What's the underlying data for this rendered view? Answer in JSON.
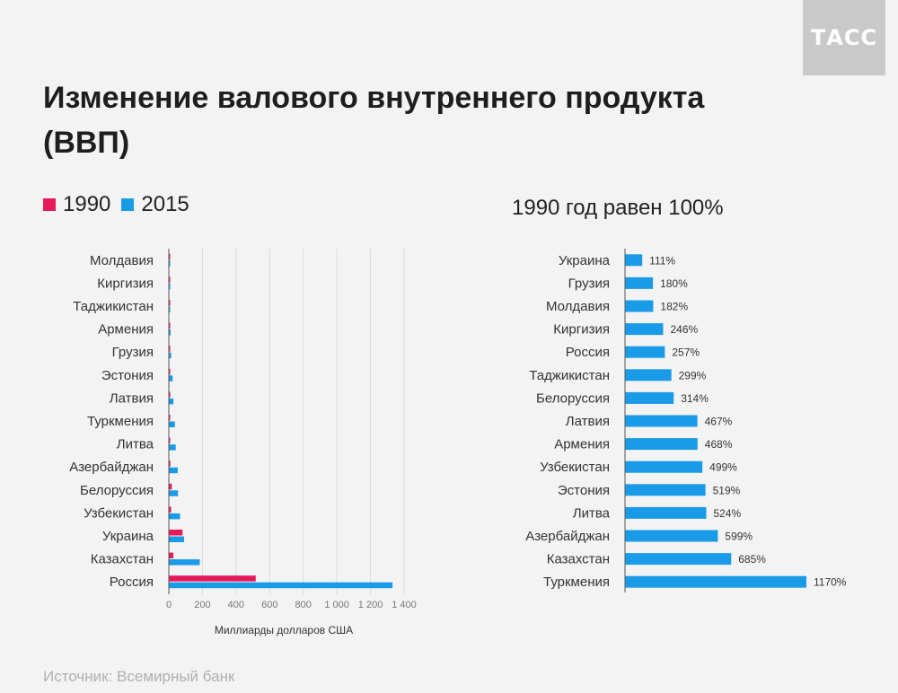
{
  "logo": "ТАСС",
  "title": "Изменение валового внутреннего продукта (ВВП)",
  "source": "Источник: Всемирный банк",
  "colors": {
    "y1990": "#e8195b",
    "y2015": "#1a9be8",
    "axis": "#555555",
    "grid": "#dcdcdc"
  },
  "chart_data": [
    {
      "type": "bar",
      "orientation": "horizontal",
      "legend": "top-left",
      "categories": [
        "Молдавия",
        "Киргизия",
        "Таджикистан",
        "Армения",
        "Грузия",
        "Эстония",
        "Латвия",
        "Туркмения",
        "Литва",
        "Азербайджан",
        "Белоруссия",
        "Узбекистан",
        "Украина",
        "Казахстан",
        "Россия"
      ],
      "series": [
        {
          "name": "1990",
          "values": [
            3.6,
            2.7,
            2.6,
            2.3,
            7.8,
            4.5,
            7.4,
            3.2,
            7.8,
            9.0,
            17.4,
            13.4,
            81.5,
            26.9,
            517
          ]
        },
        {
          "name": "2015",
          "values": [
            6.5,
            6.6,
            7.9,
            10.6,
            14.0,
            22.5,
            27.0,
            36.0,
            41.2,
            53.0,
            54.6,
            66.9,
            90.6,
            184.4,
            1331
          ]
        }
      ],
      "xlabel": "Миллиарды долларов США",
      "xlim": [
        0,
        1400
      ],
      "xticks": [
        0,
        200,
        400,
        600,
        800,
        1000,
        1200,
        1400
      ],
      "xtick_labels": [
        "0",
        "200",
        "400",
        "600",
        "800",
        "1 000",
        "1 200",
        "1 400"
      ],
      "grid": true
    },
    {
      "type": "bar",
      "orientation": "horizontal",
      "title": "1990 год равен 100%",
      "categories": [
        "Украина",
        "Грузия",
        "Молдавия",
        "Киргизия",
        "Россия",
        "Таджикистан",
        "Белоруссия",
        "Латвия",
        "Армения",
        "Узбекистан",
        "Эстония",
        "Литва",
        "Азербайджан",
        "Казахстан",
        "Туркмения"
      ],
      "values": [
        111,
        180,
        182,
        246,
        257,
        299,
        314,
        467,
        468,
        499,
        519,
        524,
        599,
        685,
        1170
      ],
      "value_labels": [
        "111%",
        "180%",
        "182%",
        "246%",
        "257%",
        "299%",
        "314%",
        "467%",
        "468%",
        "499%",
        "519%",
        "524%",
        "599%",
        "685%",
        "1170%"
      ],
      "grid": false
    }
  ]
}
